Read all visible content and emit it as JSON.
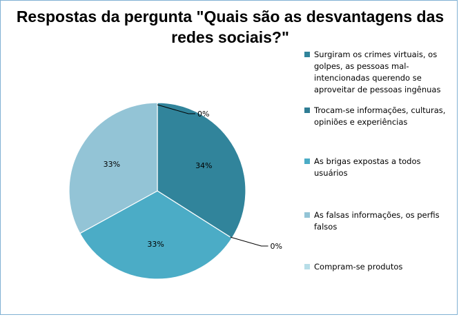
{
  "chart_data": {
    "type": "pie",
    "title": "Respostas da pergunta \"Quais são as desvantagens das redes sociais?\"",
    "slices": [
      {
        "name": "Surgiram os crimes virtuais, os golpes, as pessoas mal-intencionadas querendo se aproveitar de pessoas ingênuas",
        "value": 34,
        "label": "34%",
        "color": "#31849b"
      },
      {
        "name": "Trocam-se informações, culturas, opiniões e experiências",
        "value": 0,
        "label": "0%",
        "color": "#2f7d94"
      },
      {
        "name": "As brigas expostas a todos usuários",
        "value": 33,
        "label": "33%",
        "color": "#4bacc6"
      },
      {
        "name": "As falsas informações, os perfis falsos",
        "value": 33,
        "label": "33%",
        "color": "#93c4d6"
      },
      {
        "name": "Compram-se produtos",
        "value": 0,
        "label": "0%",
        "color": "#b7dee8"
      }
    ],
    "legend_position": "right"
  }
}
